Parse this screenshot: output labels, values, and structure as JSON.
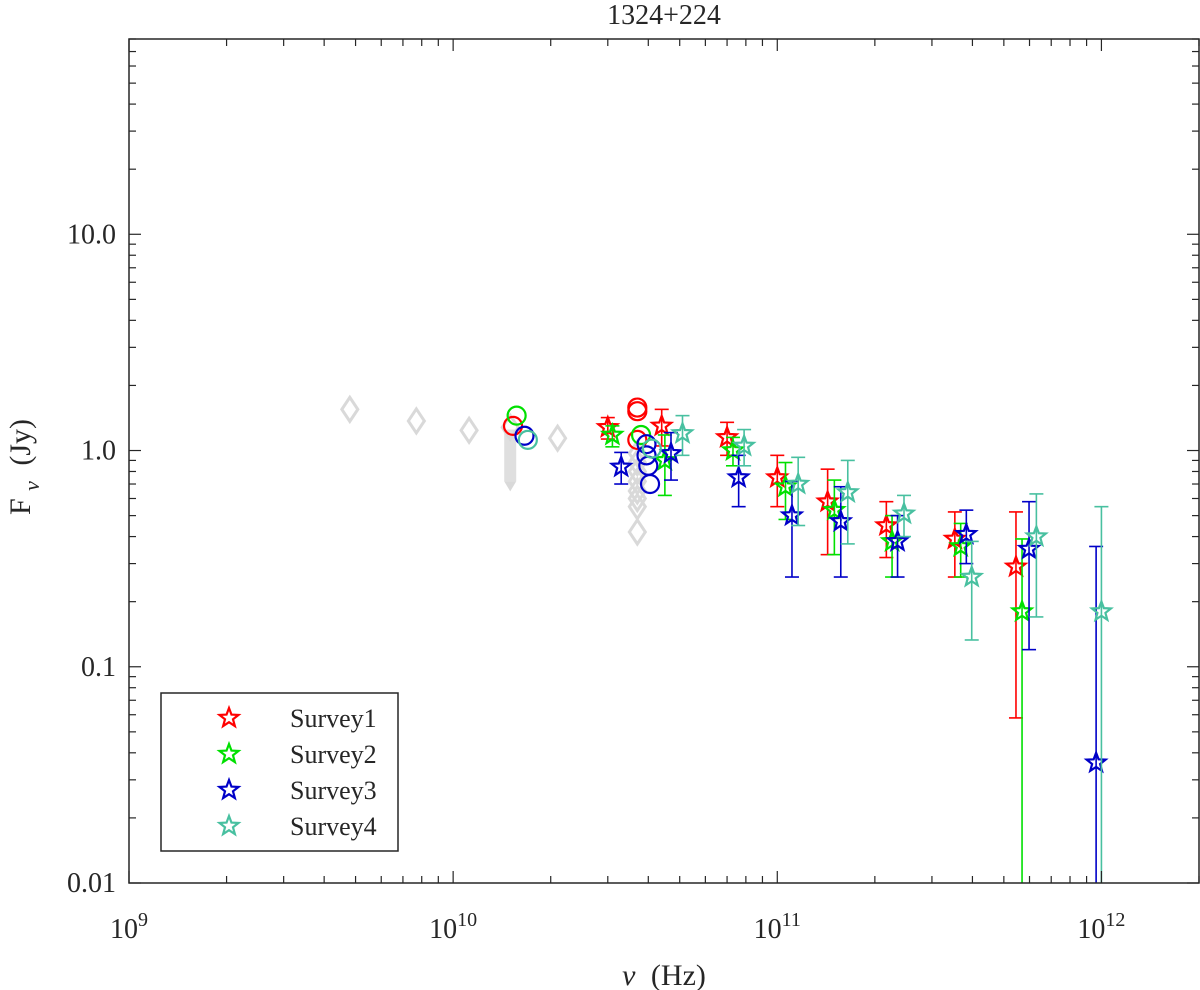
{
  "chart_data": {
    "type": "scatter",
    "title": "1324+224",
    "xlabel": {
      "symbol": "ν",
      "unit": "(Hz)"
    },
    "ylabel": {
      "base": "F",
      "sub": "ν",
      "unit": "(Jy)"
    },
    "xscale": "log",
    "yscale": "log",
    "xlim": [
      1000000000,
      2000000000000
    ],
    "ylim": [
      0.01,
      80
    ],
    "x_ticks": [
      {
        "value": 1000000000,
        "base": "10",
        "exp": "9"
      },
      {
        "value": 10000000000,
        "base": "10",
        "exp": "10"
      },
      {
        "value": 100000000000,
        "base": "10",
        "exp": "11"
      },
      {
        "value": 1000000000000,
        "base": "10",
        "exp": "12"
      }
    ],
    "y_ticks": [
      {
        "value": 0.01,
        "label": "0.01"
      },
      {
        "value": 0.1,
        "label": "0.1"
      },
      {
        "value": 1,
        "label": "1.0"
      },
      {
        "value": 10,
        "label": "10.0"
      }
    ],
    "legend_position": "bottom-left",
    "colors": {
      "axis": "#262626",
      "archival": "#d9d9d9"
    },
    "archival": {
      "color": "#d9d9d9",
      "diamonds": [
        {
          "x": 4800000000,
          "y": 1.55
        },
        {
          "x": 7700000000,
          "y": 1.37
        },
        {
          "x": 11200000000,
          "y": 1.24
        },
        {
          "x": 15000000000,
          "y": 1.28
        },
        {
          "x": 21000000000,
          "y": 1.14
        },
        {
          "x": 37000000000,
          "y": 0.42
        },
        {
          "x": 37000000000,
          "y": 0.55
        },
        {
          "x": 37000000000,
          "y": 0.6
        },
        {
          "x": 37000000000,
          "y": 0.65
        },
        {
          "x": 37000000000,
          "y": 0.72
        },
        {
          "x": 37000000000,
          "y": 0.8
        },
        {
          "x": 37000000000,
          "y": 0.88
        },
        {
          "x": 37000000000,
          "y": 0.97
        }
      ],
      "band": {
        "x": 15000000000,
        "ylo": 0.72,
        "yhi": 1.25
      }
    },
    "series": [
      {
        "name": "Survey1",
        "color": "#ff0000",
        "stars": [
          {
            "x": 30000000000,
            "y": 1.28,
            "lo": 1.13,
            "hi": 1.42
          },
          {
            "x": 44000000000,
            "y": 1.3,
            "lo": 1.05,
            "hi": 1.55
          },
          {
            "x": 70000000000,
            "y": 1.15,
            "lo": 0.95,
            "hi": 1.35
          },
          {
            "x": 100000000000,
            "y": 0.75,
            "lo": 0.55,
            "hi": 0.95
          },
          {
            "x": 143000000000,
            "y": 0.58,
            "lo": 0.33,
            "hi": 0.82
          },
          {
            "x": 217000000000,
            "y": 0.45,
            "lo": 0.32,
            "hi": 0.58
          },
          {
            "x": 353000000000,
            "y": 0.39,
            "lo": 0.26,
            "hi": 0.52
          },
          {
            "x": 545000000000,
            "y": 0.29,
            "lo": 0.058,
            "hi": 0.52
          }
        ],
        "circles": [
          {
            "x": 15300000000,
            "y": 1.3
          },
          {
            "x": 37000000000,
            "y": 1.58
          },
          {
            "x": 37000000000,
            "y": 1.52
          },
          {
            "x": 37000000000,
            "y": 1.12
          }
        ]
      },
      {
        "name": "Survey2",
        "color": "#00e000",
        "stars": [
          {
            "x": 31000000000,
            "y": 1.18,
            "lo": 1.04,
            "hi": 1.3
          },
          {
            "x": 45000000000,
            "y": 0.9,
            "lo": 0.62,
            "hi": 1.18
          },
          {
            "x": 73000000000,
            "y": 1.0,
            "lo": 0.85,
            "hi": 1.15
          },
          {
            "x": 106000000000,
            "y": 0.68,
            "lo": 0.48,
            "hi": 0.88
          },
          {
            "x": 150000000000,
            "y": 0.53,
            "lo": 0.33,
            "hi": 0.73
          },
          {
            "x": 226000000000,
            "y": 0.38,
            "lo": 0.26,
            "hi": 0.5
          },
          {
            "x": 368000000000,
            "y": 0.36,
            "lo": 0.26,
            "hi": 0.46
          },
          {
            "x": 569000000000,
            "y": 0.18,
            "lo": 0.005,
            "hi": 0.39
          }
        ],
        "circles": [
          {
            "x": 15700000000,
            "y": 1.45
          },
          {
            "x": 38000000000,
            "y": 1.18
          }
        ]
      },
      {
        "name": "Survey3",
        "color": "#0000c8",
        "stars": [
          {
            "x": 33000000000,
            "y": 0.84,
            "lo": 0.7,
            "hi": 0.98
          },
          {
            "x": 47000000000,
            "y": 0.97,
            "lo": 0.73,
            "hi": 1.21
          },
          {
            "x": 76000000000,
            "y": 0.75,
            "lo": 0.55,
            "hi": 0.95
          },
          {
            "x": 111000000000,
            "y": 0.5,
            "lo": 0.26,
            "hi": 0.72
          },
          {
            "x": 157000000000,
            "y": 0.47,
            "lo": 0.26,
            "hi": 0.68
          },
          {
            "x": 235000000000,
            "y": 0.38,
            "lo": 0.26,
            "hi": 0.5
          },
          {
            "x": 383000000000,
            "y": 0.41,
            "lo": 0.3,
            "hi": 0.53
          },
          {
            "x": 598000000000,
            "y": 0.35,
            "lo": 0.12,
            "hi": 0.58
          },
          {
            "x": 963000000000,
            "y": 0.036,
            "lo": 0.005,
            "hi": 0.36
          }
        ],
        "circles": [
          {
            "x": 16600000000,
            "y": 1.17
          },
          {
            "x": 39500000000,
            "y": 1.07
          },
          {
            "x": 39500000000,
            "y": 0.95
          },
          {
            "x": 40000000000,
            "y": 0.85
          },
          {
            "x": 40500000000,
            "y": 0.7
          }
        ]
      },
      {
        "name": "Survey4",
        "color": "#48c0a0",
        "stars": [
          {
            "x": 51000000000,
            "y": 1.2,
            "lo": 0.95,
            "hi": 1.45
          },
          {
            "x": 79000000000,
            "y": 1.05,
            "lo": 0.85,
            "hi": 1.25
          },
          {
            "x": 116000000000,
            "y": 0.7,
            "lo": 0.45,
            "hi": 0.93
          },
          {
            "x": 165000000000,
            "y": 0.64,
            "lo": 0.37,
            "hi": 0.9
          },
          {
            "x": 246000000000,
            "y": 0.51,
            "lo": 0.4,
            "hi": 0.62
          },
          {
            "x": 398000000000,
            "y": 0.26,
            "lo": 0.133,
            "hi": 0.38
          },
          {
            "x": 630000000000,
            "y": 0.4,
            "lo": 0.17,
            "hi": 0.63
          },
          {
            "x": 1000000000000,
            "y": 0.18,
            "lo": 0.005,
            "hi": 0.55
          }
        ],
        "circles": [
          {
            "x": 17000000000,
            "y": 1.12
          },
          {
            "x": 41000000000,
            "y": 1.02
          }
        ]
      }
    ]
  }
}
